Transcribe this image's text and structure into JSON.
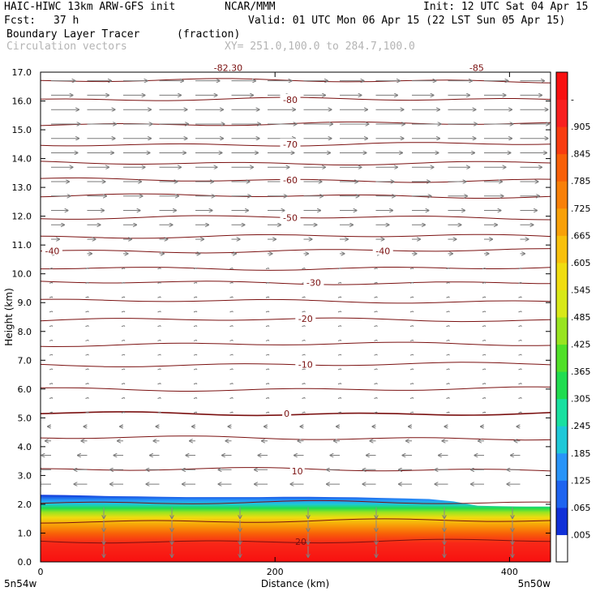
{
  "header": {
    "model": "HAIC-HIWC 13km ARW-GFS init",
    "org": "NCAR/MMM",
    "init": "Init: 12 UTC Sat 04 Apr 15",
    "fcst_label": "Fcst:",
    "fcst_value": "37 h",
    "valid": "Valid: 01 UTC Mon 06 Apr 15 (22 LST Sun 05 Apr 15)",
    "field": "Boundary Layer Tracer",
    "field_units": "(fraction)",
    "vectors": "Circulation vectors",
    "xy": "XY= 251.0,100.0 to 284.7,100.0"
  },
  "chart_data": {
    "type": "heatmap",
    "ylabel": "Height (km)",
    "xlabel": "Distance (km)",
    "xlim": [
      0,
      435
    ],
    "ylim": [
      0,
      17
    ],
    "x_ticks": [
      0,
      200,
      400
    ],
    "x_tick_labels": [
      "0",
      "200",
      "400"
    ],
    "y_ticks": [
      0,
      1,
      2,
      3,
      4,
      5,
      6,
      7,
      8,
      9,
      10,
      11,
      12,
      13,
      14,
      15,
      16,
      17
    ],
    "y_tick_labels": [
      "0.0",
      "1.0",
      "2.0",
      "3.0",
      "4.0",
      "5.0",
      "6.0",
      "7.0",
      "8.0",
      "9.0",
      "10.0",
      "11.0",
      "12.0",
      "13.0",
      "14.0",
      "15.0",
      "16.0",
      "17.0"
    ],
    "endpoints": [
      "5n54w",
      "5n50w"
    ],
    "colorbar": {
      "labels": [
        ".005",
        ".065",
        ".125",
        ".185",
        ".245",
        ".305",
        ".365",
        ".425",
        ".485",
        ".545",
        ".605",
        ".665",
        ".725",
        ".785",
        ".845",
        ".905",
        "-"
      ],
      "colors": [
        "#ffffff",
        "#1030d8",
        "#1e64f0",
        "#2894f8",
        "#1ec8d8",
        "#18e0a0",
        "#20dc50",
        "#50e028",
        "#98e420",
        "#d8e818",
        "#f0dc10",
        "#f8c00c",
        "#f8a008",
        "#f88008",
        "#f86008",
        "#f83c10",
        "#f82020",
        "#f81010"
      ]
    },
    "isotherm_labels": [
      {
        "h": 16.05,
        "x": 213,
        "text": "-80"
      },
      {
        "h": 14.5,
        "x": 213,
        "text": "-70"
      },
      {
        "h": 13.25,
        "x": 213,
        "text": "-60"
      },
      {
        "h": 11.95,
        "x": 213,
        "text": "-50"
      },
      {
        "h": 10.8,
        "x": 10,
        "text": "-40"
      },
      {
        "h": 10.8,
        "x": 292,
        "text": "-40"
      },
      {
        "h": 9.7,
        "x": 233,
        "text": "-30"
      },
      {
        "h": 8.45,
        "x": 226,
        "text": "-20"
      },
      {
        "h": 6.85,
        "x": 226,
        "text": "-10"
      },
      {
        "h": 5.15,
        "x": 210,
        "text": "0"
      },
      {
        "h": 3.15,
        "x": 219,
        "text": "10"
      },
      {
        "h": 17.15,
        "x": 160,
        "text": "-82.30"
      },
      {
        "h": 17.15,
        "x": 372,
        "text": "-85"
      },
      {
        "h": 0.7,
        "x": 222,
        "text": "20"
      }
    ],
    "isotherm_levels": [
      0.72,
      1.42,
      2.05,
      3.2,
      4.3,
      5.15,
      6.0,
      6.85,
      7.55,
      8.4,
      9.05,
      9.7,
      10.2,
      10.8,
      11.3,
      11.95,
      12.7,
      13.25,
      13.85,
      14.5,
      15.2,
      16.05,
      16.7
    ],
    "bl_top_km": [
      2.33,
      2.32,
      2.3,
      2.28,
      2.27,
      2.26,
      2.25,
      2.25,
      2.25,
      2.25,
      2.26,
      2.26,
      2.25,
      2.24,
      2.22,
      2.2,
      2.18,
      2.1,
      1.95,
      1.93,
      1.92,
      1.92
    ],
    "wind_layers": [
      {
        "h": 16.7,
        "u": 1.0
      },
      {
        "h": 16.2,
        "u": 0.9
      },
      {
        "h": 15.7,
        "u": 1.15
      },
      {
        "h": 15.2,
        "u": 1.2
      },
      {
        "h": 14.7,
        "u": 1.15
      },
      {
        "h": 14.2,
        "u": 1.1
      },
      {
        "h": 13.7,
        "u": 0.9
      },
      {
        "h": 13.2,
        "u": 0.75
      },
      {
        "h": 12.7,
        "u": 0.8
      },
      {
        "h": 12.2,
        "u": 0.7
      },
      {
        "h": 11.7,
        "u": 0.55
      },
      {
        "h": 11.2,
        "u": 0.35
      },
      {
        "h": 10.7,
        "u": 0.2
      },
      {
        "h": 10.2,
        "u": 0.08
      },
      {
        "h": 9.7,
        "u": 0.05
      },
      {
        "h": 9.2,
        "u": 0.05
      },
      {
        "h": 8.7,
        "u": 0.05
      },
      {
        "h": 8.2,
        "u": 0.05
      },
      {
        "h": 7.7,
        "u": 0.05
      },
      {
        "h": 7.2,
        "u": 0.05
      },
      {
        "h": 6.7,
        "u": 0.05
      },
      {
        "h": 6.2,
        "u": -0.05
      },
      {
        "h": 5.7,
        "u": -0.1
      },
      {
        "h": 5.2,
        "u": -0.1
      },
      {
        "h": 4.7,
        "u": -0.15
      },
      {
        "h": 4.2,
        "u": -0.25
      },
      {
        "h": 3.7,
        "u": -0.4
      },
      {
        "h": 3.2,
        "u": -0.55
      },
      {
        "h": 2.7,
        "u": -0.55
      }
    ]
  }
}
